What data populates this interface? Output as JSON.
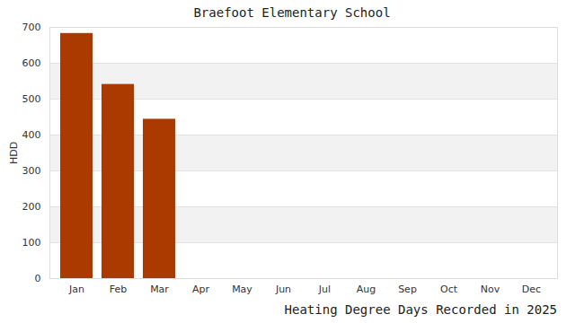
{
  "chart_data": {
    "type": "bar",
    "title": "Braefoot Elementary School",
    "caption": "Heating Degree Days Recorded in 2025",
    "ylabel": "HDD",
    "categories": [
      "Jan",
      "Feb",
      "Mar",
      "Apr",
      "May",
      "Jun",
      "Jul",
      "Aug",
      "Sep",
      "Oct",
      "Nov",
      "Dec"
    ],
    "values": [
      683,
      541,
      444,
      null,
      null,
      null,
      null,
      null,
      null,
      null,
      null,
      null
    ],
    "color": "#ab3a00",
    "ylim": [
      0,
      700
    ],
    "yticks": [
      0,
      100,
      200,
      300,
      400,
      500,
      600,
      700
    ],
    "grid": true
  }
}
